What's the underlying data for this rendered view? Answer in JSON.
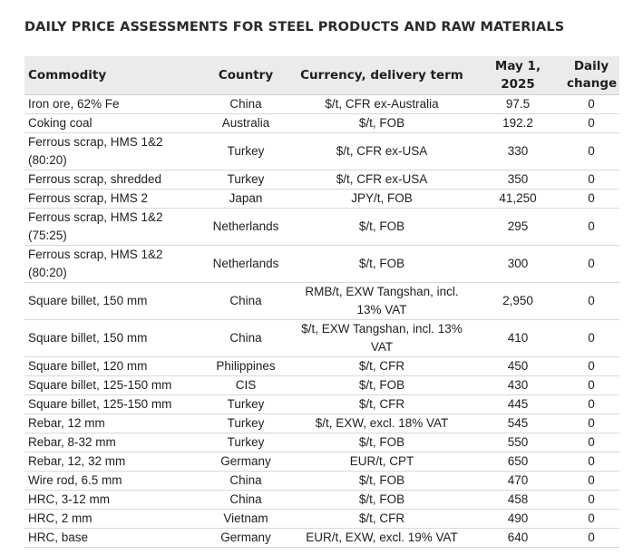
{
  "title": "DAILY PRICE ASSESSMENTS FOR STEEL PRODUCTS AND RAW MATERIALS",
  "table": {
    "headers": {
      "commodity": "Commodity",
      "country": "Country",
      "currency": "Currency, delivery term",
      "date": "May 1, 2025",
      "change_line1": "Daily",
      "change_line2": "change"
    },
    "rows": [
      {
        "commodity": "Iron ore, 62% Fe",
        "country": "China",
        "currency": "$/t, CFR ex-Australia",
        "price": "97.5",
        "change": "0"
      },
      {
        "commodity": "Coking coal",
        "country": "Australia",
        "currency": "$/t, FOB",
        "price": "192.2",
        "change": "0"
      },
      {
        "commodity": "Ferrous scrap, HMS 1&2 (80:20)",
        "country": "Turkey",
        "currency": "$/t, CFR ex-USA",
        "price": "330",
        "change": "0"
      },
      {
        "commodity": "Ferrous scrap, shredded",
        "country": "Turkey",
        "currency": "$/t, CFR ex-USA",
        "price": "350",
        "change": "0"
      },
      {
        "commodity": "Ferrous scrap, HMS 2",
        "country": "Japan",
        "currency": "JPY/t, FOB",
        "price": "41,250",
        "change": "0"
      },
      {
        "commodity": "Ferrous scrap, HMS 1&2 (75:25)",
        "country": "Netherlands",
        "currency": "$/t, FOB",
        "price": "295",
        "change": "0"
      },
      {
        "commodity": "Ferrous scrap, HMS 1&2 (80:20)",
        "country": "Netherlands",
        "currency": "$/t, FOB",
        "price": "300",
        "change": "0"
      },
      {
        "commodity": "Square billet, 150 mm",
        "country": "China",
        "currency": "RMB/t, EXW Tangshan, incl. 13% VAT",
        "price": "2,950",
        "change": "0"
      },
      {
        "commodity": "Square billet, 150 mm",
        "country": "China",
        "currency": "$/t, EXW Tangshan, incl. 13% VAT",
        "price": "410",
        "change": "0"
      },
      {
        "commodity": "Square billet, 120 mm",
        "country": "Philippines",
        "currency": "$/t, CFR",
        "price": "450",
        "change": "0"
      },
      {
        "commodity": "Square billet, 125-150 mm",
        "country": "CIS",
        "currency": "$/t, FOB",
        "price": "430",
        "change": "0"
      },
      {
        "commodity": "Square billet, 125-150 mm",
        "country": "Turkey",
        "currency": "$/t, CFR",
        "price": "445",
        "change": "0"
      },
      {
        "commodity": "Rebar, 12 mm",
        "country": "Turkey",
        "currency": "$/t, EXW, excl. 18% VAT",
        "price": "545",
        "change": "0"
      },
      {
        "commodity": "Rebar, 8-32 mm",
        "country": "Turkey",
        "currency": "$/t, FOB",
        "price": "550",
        "change": "0"
      },
      {
        "commodity": "Rebar, 12, 32 mm",
        "country": "Germany",
        "currency": "EUR/t, CPT",
        "price": "650",
        "change": "0"
      },
      {
        "commodity": "Wire rod, 6.5 mm",
        "country": "China",
        "currency": "$/t, FOB",
        "price": "470",
        "change": "0"
      },
      {
        "commodity": "HRC, 3-12 mm",
        "country": "China",
        "currency": "$/t, FOB",
        "price": "458",
        "change": "0"
      },
      {
        "commodity": "HRC, 2 mm",
        "country": "Vietnam",
        "currency": "$/t, CFR",
        "price": "490",
        "change": "0"
      },
      {
        "commodity": "HRC, base",
        "country": "Germany",
        "currency": "EUR/t, EXW, excl. 19% VAT",
        "price": "640",
        "change": "0"
      }
    ]
  }
}
